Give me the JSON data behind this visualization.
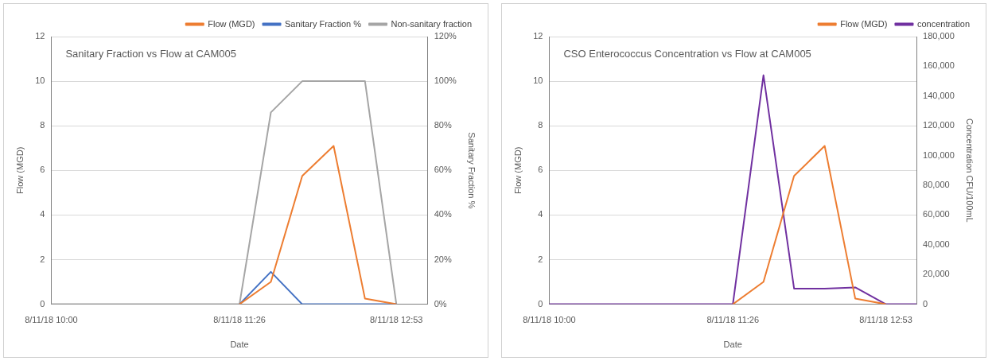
{
  "chart_data": [
    {
      "type": "line",
      "title": "Sanitary Fraction vs Flow at CAM005",
      "xlabel": "Date",
      "ylabel": "Flow (MGD)",
      "y2label": "Sanitary Fraction %",
      "categories": [
        "8/11/18 10:00",
        null,
        null,
        null,
        null,
        null,
        "8/11/18 11:26",
        null,
        null,
        null,
        null,
        "8/11/18 12:53",
        null
      ],
      "series": [
        {
          "name": "Flow (MGD)",
          "color": "#ed7d31",
          "values": [
            null,
            null,
            null,
            null,
            null,
            null,
            0,
            1.0,
            5.75,
            7.1,
            0.25,
            0,
            null
          ]
        },
        {
          "name": "Sanitary Fraction %",
          "color": "#4472c4",
          "axis": "y2",
          "values": [
            null,
            null,
            null,
            null,
            null,
            null,
            0,
            14.5,
            0,
            0,
            0,
            0,
            null
          ]
        },
        {
          "name": "Non-sanitary fraction",
          "color": "#a5a5a5",
          "axis": "y2",
          "values": [
            0,
            0,
            0,
            0,
            0,
            0,
            0,
            86,
            100,
            100,
            100,
            0,
            null
          ]
        }
      ],
      "ylim": [
        0,
        12
      ],
      "yticks": [
        0,
        2,
        4,
        6,
        8,
        10,
        12
      ],
      "y2lim": [
        0,
        120
      ],
      "y2ticks": [
        {
          "value": 0,
          "label": "0%"
        },
        {
          "value": 20,
          "label": "20%"
        },
        {
          "value": 40,
          "label": "40%"
        },
        {
          "value": 60,
          "label": "60%"
        },
        {
          "value": 80,
          "label": "80%"
        },
        {
          "value": 100,
          "label": "100%"
        },
        {
          "value": 120,
          "label": "120%"
        }
      ],
      "grid": "y",
      "legend": "top right",
      "marker": "none",
      "line_style": "solid"
    },
    {
      "type": "line",
      "title": "CSO Enterococcus Concentration vs Flow at CAM005",
      "xlabel": "Date",
      "ylabel": "Flow (MGD)",
      "y2label": "Concentration CFU/100mL",
      "categories": [
        "8/11/18 10:00",
        null,
        null,
        null,
        null,
        null,
        "8/11/18 11:26",
        null,
        null,
        null,
        null,
        "8/11/18 12:53",
        null
      ],
      "series": [
        {
          "name": "Flow (MGD)",
          "color": "#ed7d31",
          "values": [
            null,
            null,
            null,
            null,
            null,
            null,
            0,
            1.0,
            5.75,
            7.1,
            0.25,
            0,
            null
          ]
        },
        {
          "name": "concentration",
          "color": "#7030a0",
          "axis": "y2",
          "values": [
            0,
            0,
            0,
            0,
            0,
            0,
            0,
            154000,
            10500,
            10500,
            11300,
            0,
            0
          ]
        }
      ],
      "ylim": [
        0,
        12
      ],
      "yticks": [
        0,
        2,
        4,
        6,
        8,
        10,
        12
      ],
      "y2lim": [
        0,
        180000
      ],
      "y2ticks": [
        {
          "value": 0,
          "label": "0"
        },
        {
          "value": 20000,
          "label": "20,000"
        },
        {
          "value": 40000,
          "label": "40,000"
        },
        {
          "value": 60000,
          "label": "60,000"
        },
        {
          "value": 80000,
          "label": "80,000"
        },
        {
          "value": 100000,
          "label": "100,000"
        },
        {
          "value": 120000,
          "label": "120,000"
        },
        {
          "value": 140000,
          "label": "140,000"
        },
        {
          "value": 160000,
          "label": "160,000"
        },
        {
          "value": 180000,
          "label": "180,000"
        }
      ],
      "grid": "y",
      "legend": "top right",
      "marker": "none",
      "line_style": "solid"
    }
  ]
}
